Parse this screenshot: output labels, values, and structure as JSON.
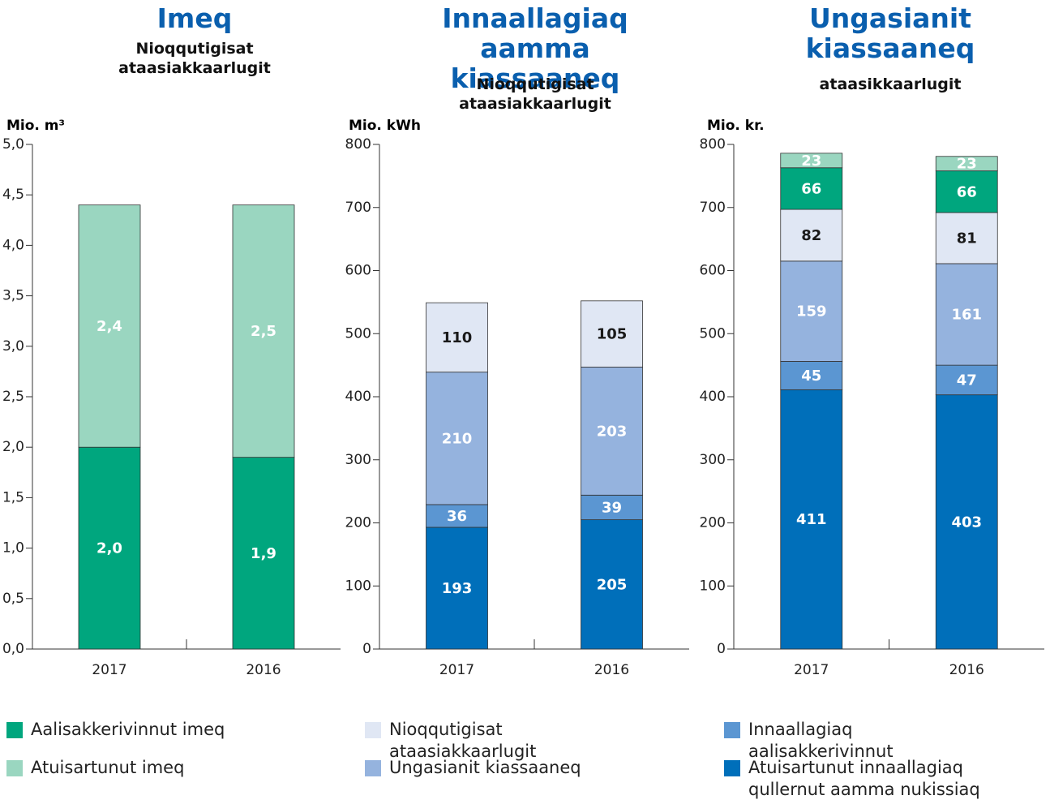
{
  "chart_data": [
    {
      "type": "bar",
      "stacked": true,
      "title": "Imeq",
      "subtitle": "Nioqqutigisat ataasiakkaarlugit",
      "ylabel": "Mio. m³",
      "categories": [
        "2017",
        "2016"
      ],
      "series": [
        {
          "name": "Aalisakkerivinnut imeq",
          "color": "#00a67e",
          "values": [
            2.0,
            1.9
          ],
          "value_labels": [
            "2,0",
            "1,9"
          ]
        },
        {
          "name": "Atuisartunut imeq",
          "color": "#9ad6c0",
          "values": [
            2.4,
            2.5
          ],
          "value_labels": [
            "2,4",
            "2,5"
          ]
        }
      ],
      "ylim": [
        0,
        5
      ],
      "yticks": [
        {
          "value": 0,
          "label": "0,0"
        },
        {
          "value": 0.5,
          "label": "0,5"
        },
        {
          "value": 1,
          "label": "1,0"
        },
        {
          "value": 1.5,
          "label": "1,5"
        },
        {
          "value": 2,
          "label": "2,0"
        },
        {
          "value": 2.5,
          "label": "2,5"
        },
        {
          "value": 3,
          "label": "3,0"
        },
        {
          "value": 3.5,
          "label": "3,5"
        },
        {
          "value": 4,
          "label": "4,0"
        },
        {
          "value": 4.5,
          "label": "4,5"
        },
        {
          "value": 5,
          "label": "5,0"
        }
      ]
    },
    {
      "type": "bar",
      "stacked": true,
      "title": "Innaallagiaq aamma kiassaaneq",
      "subtitle": "Nioqqutigisat ataasiakkaarlugit",
      "ylabel": "Mio. kWh",
      "categories": [
        "2017",
        "2016"
      ],
      "series": [
        {
          "name": "Atuisartunut innaallagiaq qullernut aamma nukissiaq",
          "color": "#006fba",
          "values": [
            193,
            205
          ]
        },
        {
          "name": "Innaallagiaq aalisakkerivinnut",
          "color": "#5b96d2",
          "values": [
            36,
            39
          ]
        },
        {
          "name": "Ungasianit kiassaaneq",
          "color": "#95b3de",
          "values": [
            210,
            203
          ]
        },
        {
          "name": "Nioqqutigisat ataasiakkaarlugit",
          "color": "#e0e7f4",
          "values": [
            110,
            105
          ]
        }
      ],
      "ylim": [
        0,
        800
      ],
      "yticks": [
        0,
        100,
        200,
        300,
        400,
        500,
        600,
        700,
        800
      ]
    },
    {
      "type": "bar",
      "stacked": true,
      "title": "Ungasianit kiassaaneq",
      "subtitle": "ataasikkaarlugit",
      "ylabel": "Mio. kr.",
      "categories": [
        "2017",
        "2016"
      ],
      "series": [
        {
          "name": "Atuisartunut innaallagiaq qullernut aamma nukissiaq",
          "color": "#006fba",
          "values": [
            411,
            403
          ]
        },
        {
          "name": "Innaallagiaq aalisakkerivinnut",
          "color": "#5b96d2",
          "values": [
            45,
            47
          ]
        },
        {
          "name": "Ungasianit kiassaaneq",
          "color": "#95b3de",
          "values": [
            159,
            161
          ]
        },
        {
          "name": "Nioqqutigisat ataasiakkaarlugit",
          "color": "#e0e7f4",
          "values": [
            82,
            81
          ]
        },
        {
          "name": "Aalisakkerivinnut imeq",
          "color": "#00a67e",
          "values": [
            66,
            66
          ]
        },
        {
          "name": "Atuisartunut imeq",
          "color": "#9ad6c0",
          "values": [
            23,
            23
          ]
        }
      ],
      "ylim": [
        0,
        800
      ],
      "yticks": [
        0,
        100,
        200,
        300,
        400,
        500,
        600,
        700,
        800
      ]
    }
  ]
}
